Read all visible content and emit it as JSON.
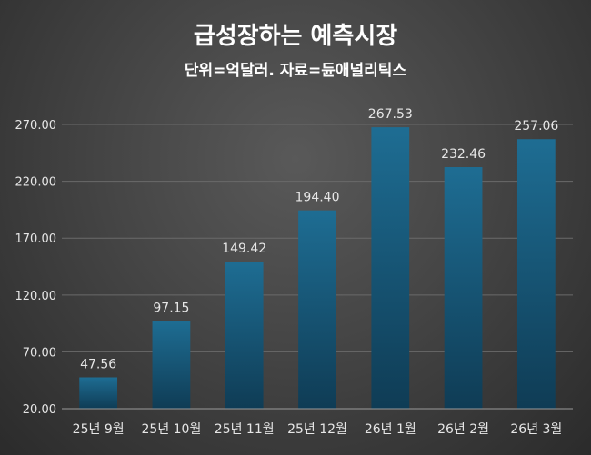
{
  "chart_data": {
    "type": "bar",
    "title": "급성장하는 예측시장",
    "subtitle": "단위=억달러. 자료=듄애널리틱스",
    "categories": [
      "25년 9월",
      "25년 10월",
      "25년 11월",
      "25년 12월",
      "26년 1월",
      "26년 2월",
      "26년 3월"
    ],
    "values": [
      47.56,
      97.15,
      149.42,
      194.4,
      267.53,
      232.46,
      257.06
    ],
    "value_labels": [
      "47.56",
      "97.15",
      "149.42",
      "194.40",
      "267.53",
      "232.46",
      "257.06"
    ],
    "y_ticks": [
      "20.00",
      "70.00",
      "120.00",
      "170.00",
      "220.00",
      "270.00"
    ],
    "ylim": [
      20,
      290
    ],
    "xlabel": "",
    "ylabel": "",
    "grid": true,
    "bar_color": "#1e6d93"
  }
}
